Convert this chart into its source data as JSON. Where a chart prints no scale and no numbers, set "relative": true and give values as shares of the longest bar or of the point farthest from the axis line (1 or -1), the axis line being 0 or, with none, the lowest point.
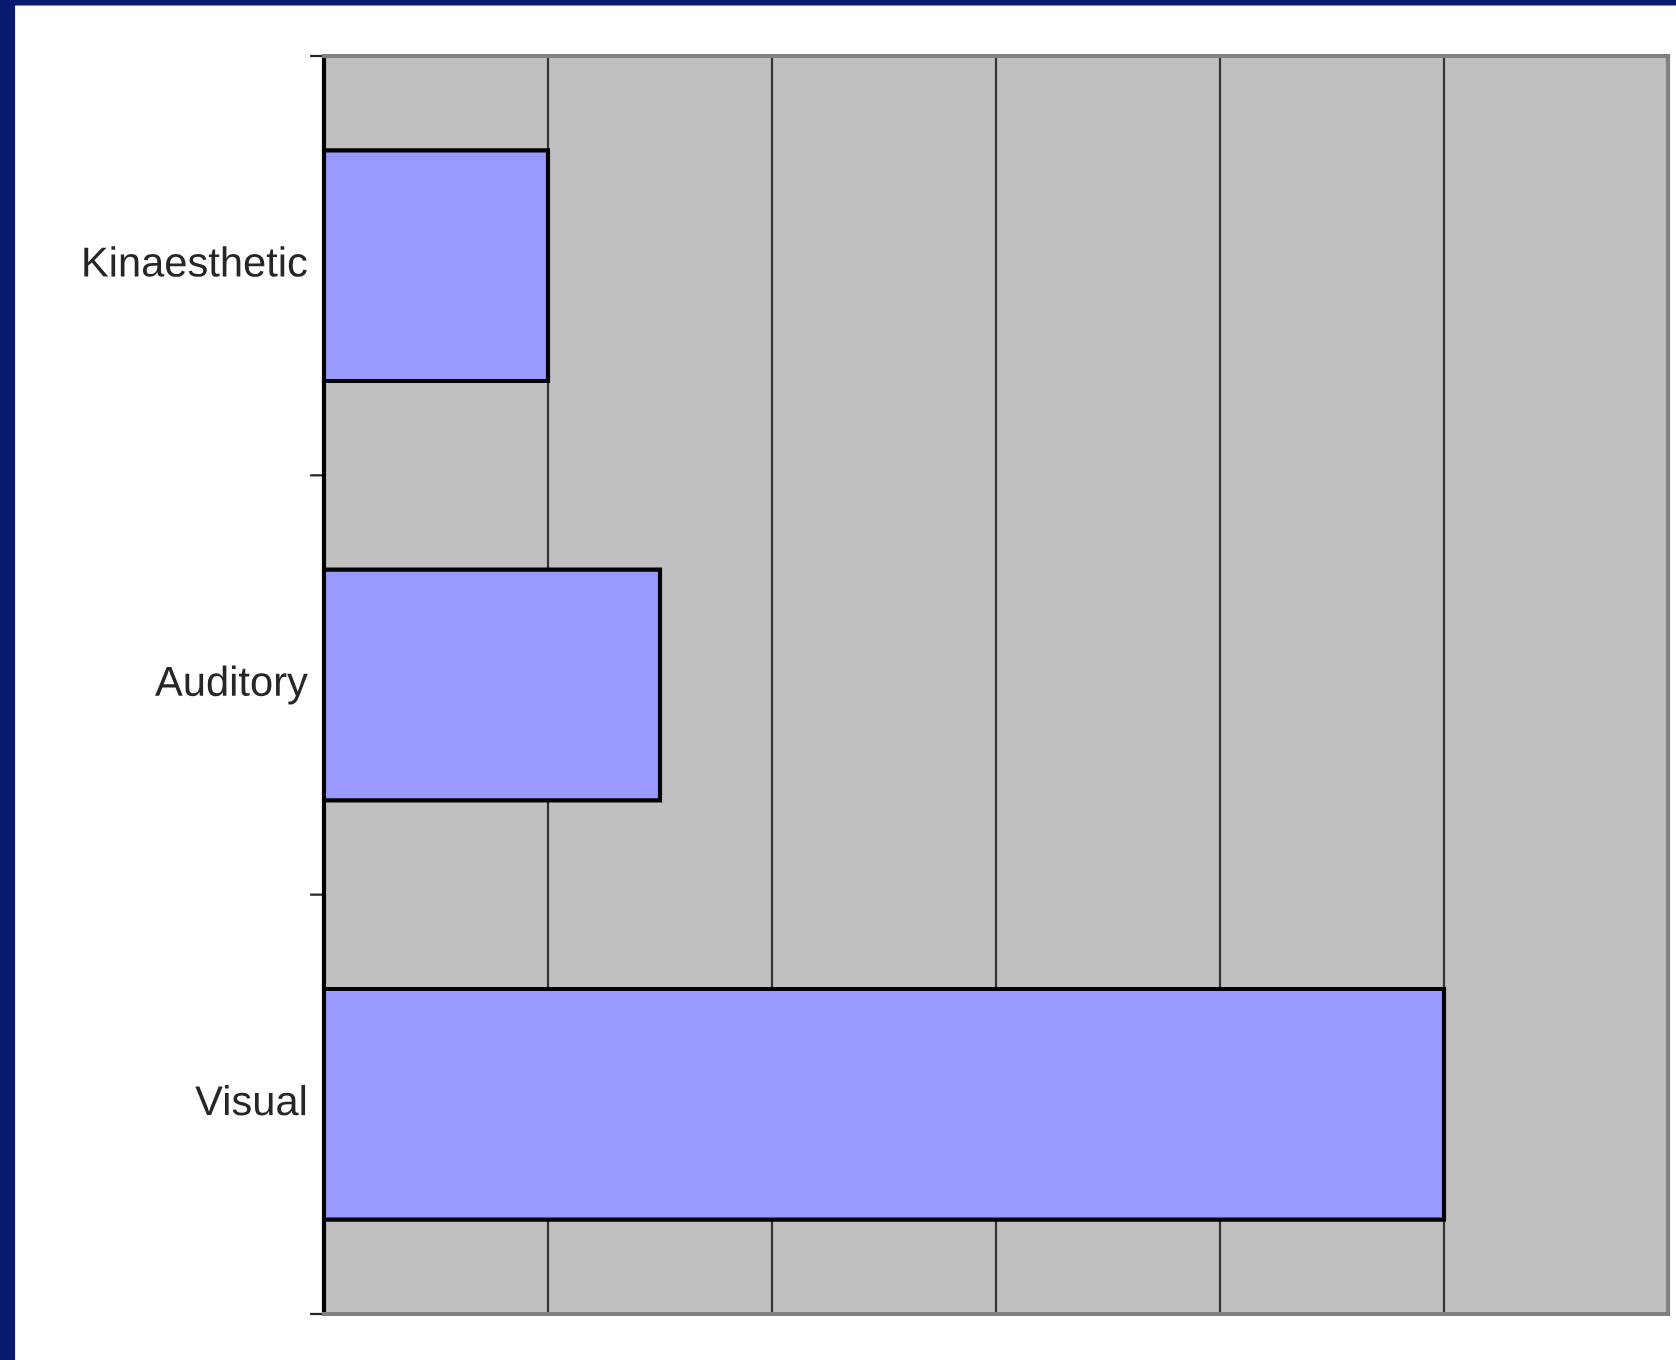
{
  "chart_data": {
    "type": "bar",
    "orientation": "horizontal",
    "relative": true,
    "categories": [
      "Kinaesthetic",
      "Auditory",
      "Visual"
    ],
    "values": [
      0.2,
      0.3,
      1.0
    ],
    "color": "#9999ff",
    "grid": "x",
    "legend": false
  }
}
